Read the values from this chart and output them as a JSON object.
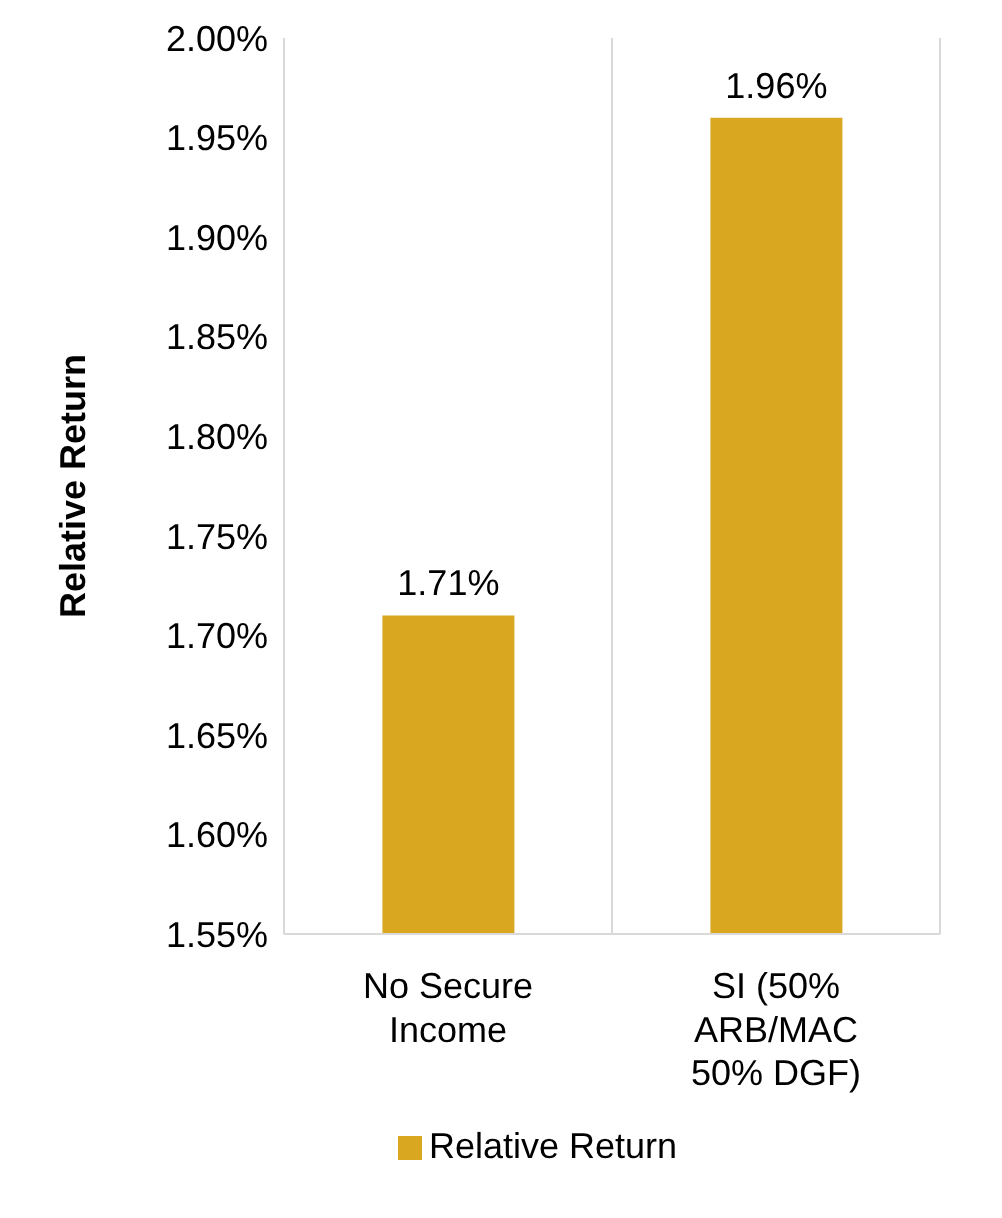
{
  "chart_data": {
    "type": "bar",
    "ylabel": "Relative Return",
    "categories": [
      "No Secure Income",
      "SI (50% ARB/MAC 50% DGF)"
    ],
    "series": [
      {
        "name": "Relative Return",
        "color": "#daa820",
        "values": [
          1.71,
          1.96
        ],
        "value_labels": [
          "1.71%",
          "1.96%"
        ]
      }
    ],
    "ylim": [
      1.55,
      2.0
    ],
    "yticks": [
      {
        "value": 1.55,
        "label": "1.55%"
      },
      {
        "value": 1.6,
        "label": "1.60%"
      },
      {
        "value": 1.65,
        "label": "1.65%"
      },
      {
        "value": 1.7,
        "label": "1.70%"
      },
      {
        "value": 1.75,
        "label": "1.75%"
      },
      {
        "value": 1.8,
        "label": "1.80%"
      },
      {
        "value": 1.85,
        "label": "1.85%"
      },
      {
        "value": 1.9,
        "label": "1.90%"
      },
      {
        "value": 1.95,
        "label": "1.95%"
      },
      {
        "value": 2.0,
        "label": "2.00%"
      }
    ],
    "grid": "x",
    "legend": "bottom"
  }
}
